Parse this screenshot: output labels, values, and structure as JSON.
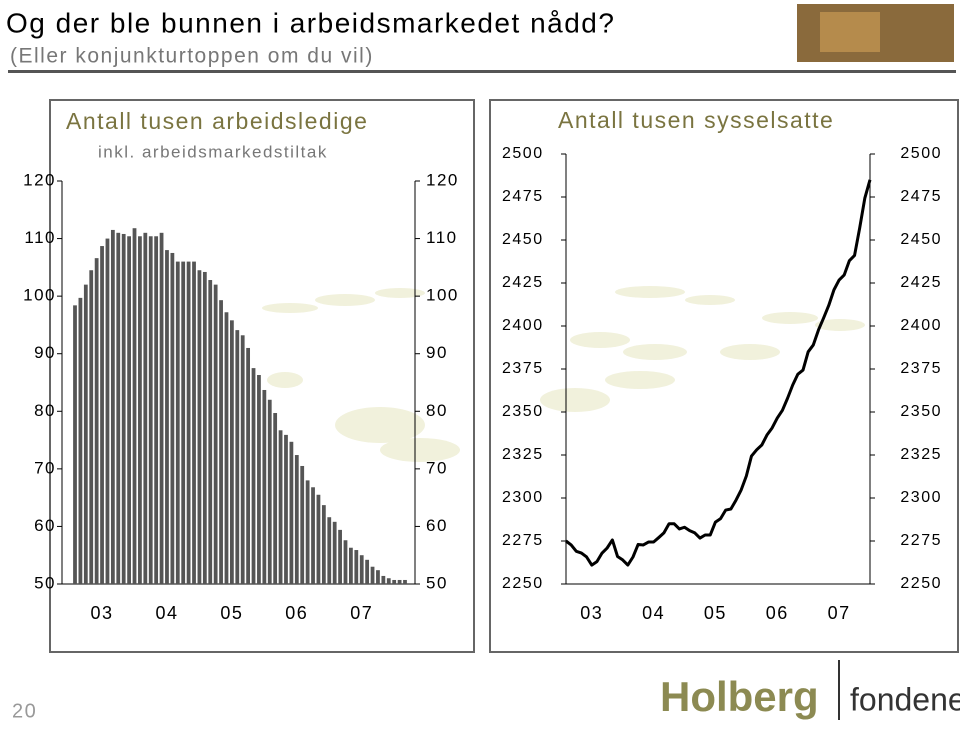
{
  "slide": {
    "title": "Og der ble bunnen i arbeidsmarkedet nådd?",
    "subtitle": "(Eller konjunkturtoppen om du vil)",
    "page_number": "20",
    "logo": {
      "name": "Holberg",
      "suffix": "fondene"
    }
  },
  "chart_data": [
    {
      "type": "bar",
      "title": "Antall tusen arbeidsledige",
      "subtitle": "inkl. arbeidsmarkedstiltak",
      "color": "#555555",
      "categories": [
        null,
        null,
        null,
        null,
        null,
        "03",
        null,
        null,
        null,
        null,
        null,
        null,
        null,
        null,
        null,
        null,
        null,
        "04",
        null,
        null,
        null,
        null,
        null,
        null,
        null,
        null,
        null,
        null,
        null,
        "05",
        null,
        null,
        null,
        null,
        null,
        null,
        null,
        null,
        null,
        null,
        null,
        "06",
        null,
        null,
        null,
        null,
        null,
        null,
        null,
        null,
        null,
        null,
        null,
        "07",
        null,
        null,
        null,
        null,
        null,
        null,
        null,
        null
      ],
      "values": [
        98.4,
        99.7,
        102,
        104.5,
        106.6,
        108.7,
        110,
        111.5,
        111,
        110.8,
        110.4,
        111.8,
        110.4,
        111,
        110.4,
        110.4,
        111,
        108,
        107.5,
        106,
        106,
        106,
        106,
        104.5,
        104.2,
        102.8,
        102,
        99.3,
        97.2,
        95.8,
        94.1,
        93.2,
        91,
        87.5,
        86.3,
        83.7,
        82,
        79.7,
        76.7,
        75.9,
        74.7,
        72.4,
        70.5,
        68,
        66.8,
        65.5,
        63.7,
        61.6,
        60.8,
        59.4,
        57.6,
        56.3,
        55.9,
        55,
        54.2,
        53,
        52.4,
        51.4,
        51,
        50.7,
        50.7,
        50.7
      ],
      "ylim": [
        50,
        120
      ],
      "yticks": [
        50,
        60,
        70,
        80,
        90,
        100,
        110,
        120
      ]
    },
    {
      "type": "line",
      "title": "Antall tusen sysselsatte",
      "color": "#000000",
      "categories": [
        null,
        null,
        null,
        null,
        null,
        "03",
        null,
        null,
        null,
        null,
        null,
        null,
        null,
        null,
        null,
        null,
        null,
        "04",
        null,
        null,
        null,
        null,
        null,
        null,
        null,
        null,
        null,
        null,
        null,
        "05",
        null,
        null,
        null,
        null,
        null,
        null,
        null,
        null,
        null,
        null,
        null,
        "06",
        null,
        null,
        null,
        null,
        null,
        null,
        null,
        null,
        null,
        null,
        null,
        "07",
        null,
        null,
        null,
        null,
        null,
        null
      ],
      "values": [
        2275,
        2272.7,
        2269,
        2268,
        2265.7,
        2261,
        2263,
        2268,
        2271,
        2275.6,
        2266,
        2264,
        2261,
        2265.7,
        2273,
        2272.7,
        2274.4,
        2274.4,
        2277,
        2279.7,
        2285,
        2285,
        2282,
        2283,
        2281,
        2279.7,
        2276.7,
        2278.5,
        2278.5,
        2286,
        2288,
        2293,
        2293.6,
        2298.8,
        2304.7,
        2312.8,
        2324.4,
        2328,
        2330.8,
        2336.6,
        2340.7,
        2346.5,
        2351,
        2358,
        2365.7,
        2372,
        2374.4,
        2385,
        2389,
        2397.7,
        2404.7,
        2412,
        2421,
        2426.7,
        2429.7,
        2438,
        2441,
        2457,
        2474.4,
        2485
      ],
      "ylim": [
        2250,
        2500
      ],
      "yticks": [
        2250,
        2275,
        2300,
        2325,
        2350,
        2375,
        2400,
        2425,
        2450,
        2475,
        2500
      ]
    }
  ]
}
